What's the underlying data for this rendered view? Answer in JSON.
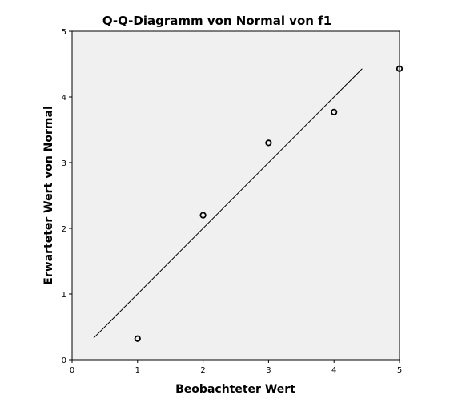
{
  "chart_data": {
    "type": "scatter",
    "title": "Q-Q-Diagramm von Normal von f1",
    "xlabel": "Beobachteter Wert",
    "ylabel": "Erwarteter Wert von Normal",
    "xlim": [
      0,
      5
    ],
    "ylim": [
      0,
      5
    ],
    "xticks": [
      0,
      1,
      2,
      3,
      4,
      5
    ],
    "yticks": [
      0,
      1,
      2,
      3,
      4,
      5
    ],
    "points": [
      {
        "x": 1,
        "y": 0.32
      },
      {
        "x": 2,
        "y": 2.2
      },
      {
        "x": 3,
        "y": 3.3
      },
      {
        "x": 4,
        "y": 3.77
      },
      {
        "x": 5,
        "y": 4.43
      }
    ],
    "reference_line": {
      "x": [
        0.33,
        4.43
      ],
      "y": [
        0.33,
        4.43
      ]
    },
    "grid": false,
    "legend": "none",
    "colors": {
      "plot_background": "#f0f0f0",
      "marker": "#000000",
      "line": "#000000"
    }
  }
}
